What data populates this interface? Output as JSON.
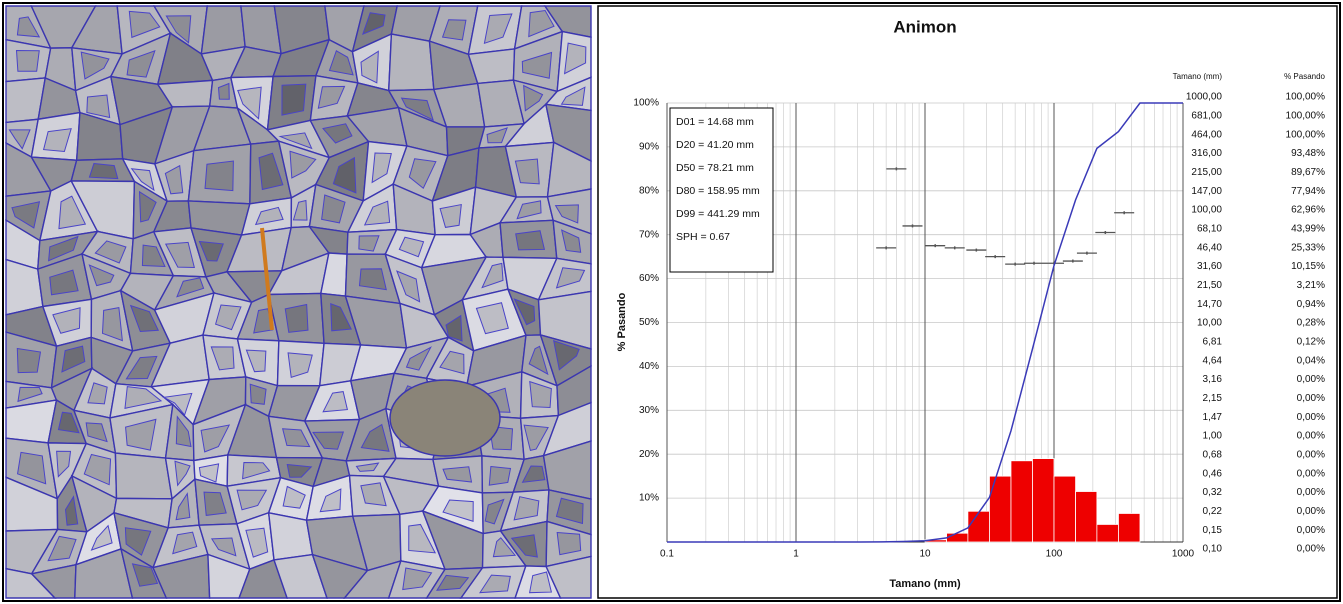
{
  "chart_data": {
    "type": "histogram",
    "title": "Animon",
    "x_label": "Tamano (mm)",
    "y_label": "% Pasando",
    "xlim": [
      0.1,
      1000
    ],
    "ylim": [
      0,
      100
    ],
    "log_x": true,
    "grid": true,
    "xticks": [
      0.1,
      1,
      10,
      100,
      1000
    ],
    "yticks": [
      {
        "value": 10,
        "label": "10%"
      },
      {
        "value": 20,
        "label": "20%"
      },
      {
        "value": 30,
        "label": "30%"
      },
      {
        "value": 40,
        "label": "40%"
      },
      {
        "value": 50,
        "label": "50%"
      },
      {
        "value": 60,
        "label": "60%"
      },
      {
        "value": 70,
        "label": "70%"
      },
      {
        "value": 80,
        "label": "80%"
      },
      {
        "value": 90,
        "label": "90%"
      },
      {
        "value": 100,
        "label": "100%"
      }
    ],
    "bins": [
      10,
      14.7,
      21.5,
      31.6,
      46.4,
      68.1,
      100,
      147,
      215,
      316,
      464
    ],
    "values": [
      0.5,
      2,
      7,
      15,
      18.5,
      19,
      15,
      11.5,
      4,
      6.5
    ],
    "color": "#ee0000",
    "line": {
      "color": "#3a3ab8",
      "x": [
        0.1,
        0.15,
        0.22,
        0.32,
        0.46,
        0.68,
        1,
        1.47,
        2.15,
        3.16,
        4.64,
        6.81,
        10,
        14.7,
        21.5,
        31.6,
        46.4,
        68.1,
        100,
        147,
        215,
        316,
        464,
        681,
        1000
      ],
      "values": [
        0,
        0,
        0,
        0,
        0,
        0,
        0,
        0,
        0,
        0,
        0.04,
        0.12,
        0.28,
        0.94,
        3.21,
        10.15,
        25.33,
        43.99,
        62.96,
        77.94,
        89.67,
        93.48,
        100,
        100,
        100
      ]
    },
    "markers": {
      "color": "#555555",
      "x": [
        5,
        6,
        8,
        12,
        17,
        25,
        35,
        50,
        70,
        100,
        140,
        180,
        250,
        350
      ],
      "values": [
        67,
        85,
        72,
        67.5,
        67,
        66.5,
        65,
        63.3,
        63.5,
        63.5,
        64,
        65.8,
        70.5,
        75
      ]
    },
    "annotations": [
      "D01 = 14.68 mm",
      "D20 = 41.20 mm",
      "D50 = 78.21 mm",
      "D80 = 158.95 mm",
      "D99 = 441.29 mm",
      "SPH = 0.67"
    ]
  },
  "table": {
    "header": [
      "Tamano (mm)",
      "% Pasando"
    ],
    "rows": [
      [
        "1000,00",
        "100,00%"
      ],
      [
        "681,00",
        "100,00%"
      ],
      [
        "464,00",
        "100,00%"
      ],
      [
        "316,00",
        "93,48%"
      ],
      [
        "215,00",
        "89,67%"
      ],
      [
        "147,00",
        "77,94%"
      ],
      [
        "100,00",
        "62,96%"
      ],
      [
        "68,10",
        "43,99%"
      ],
      [
        "46,40",
        "25,33%"
      ],
      [
        "31,60",
        "10,15%"
      ],
      [
        "21,50",
        "3,21%"
      ],
      [
        "14,70",
        "0,94%"
      ],
      [
        "10,00",
        "0,28%"
      ],
      [
        "6,81",
        "0,12%"
      ],
      [
        "4,64",
        "0,04%"
      ],
      [
        "3,16",
        "0,00%"
      ],
      [
        "2,15",
        "0,00%"
      ],
      [
        "1,47",
        "0,00%"
      ],
      [
        "1,00",
        "0,00%"
      ],
      [
        "0,68",
        "0,00%"
      ],
      [
        "0,46",
        "0,00%"
      ],
      [
        "0,32",
        "0,00%"
      ],
      [
        "0,22",
        "0,00%"
      ],
      [
        "0,15",
        "0,00%"
      ],
      [
        "0,10",
        "0,00%"
      ]
    ]
  }
}
